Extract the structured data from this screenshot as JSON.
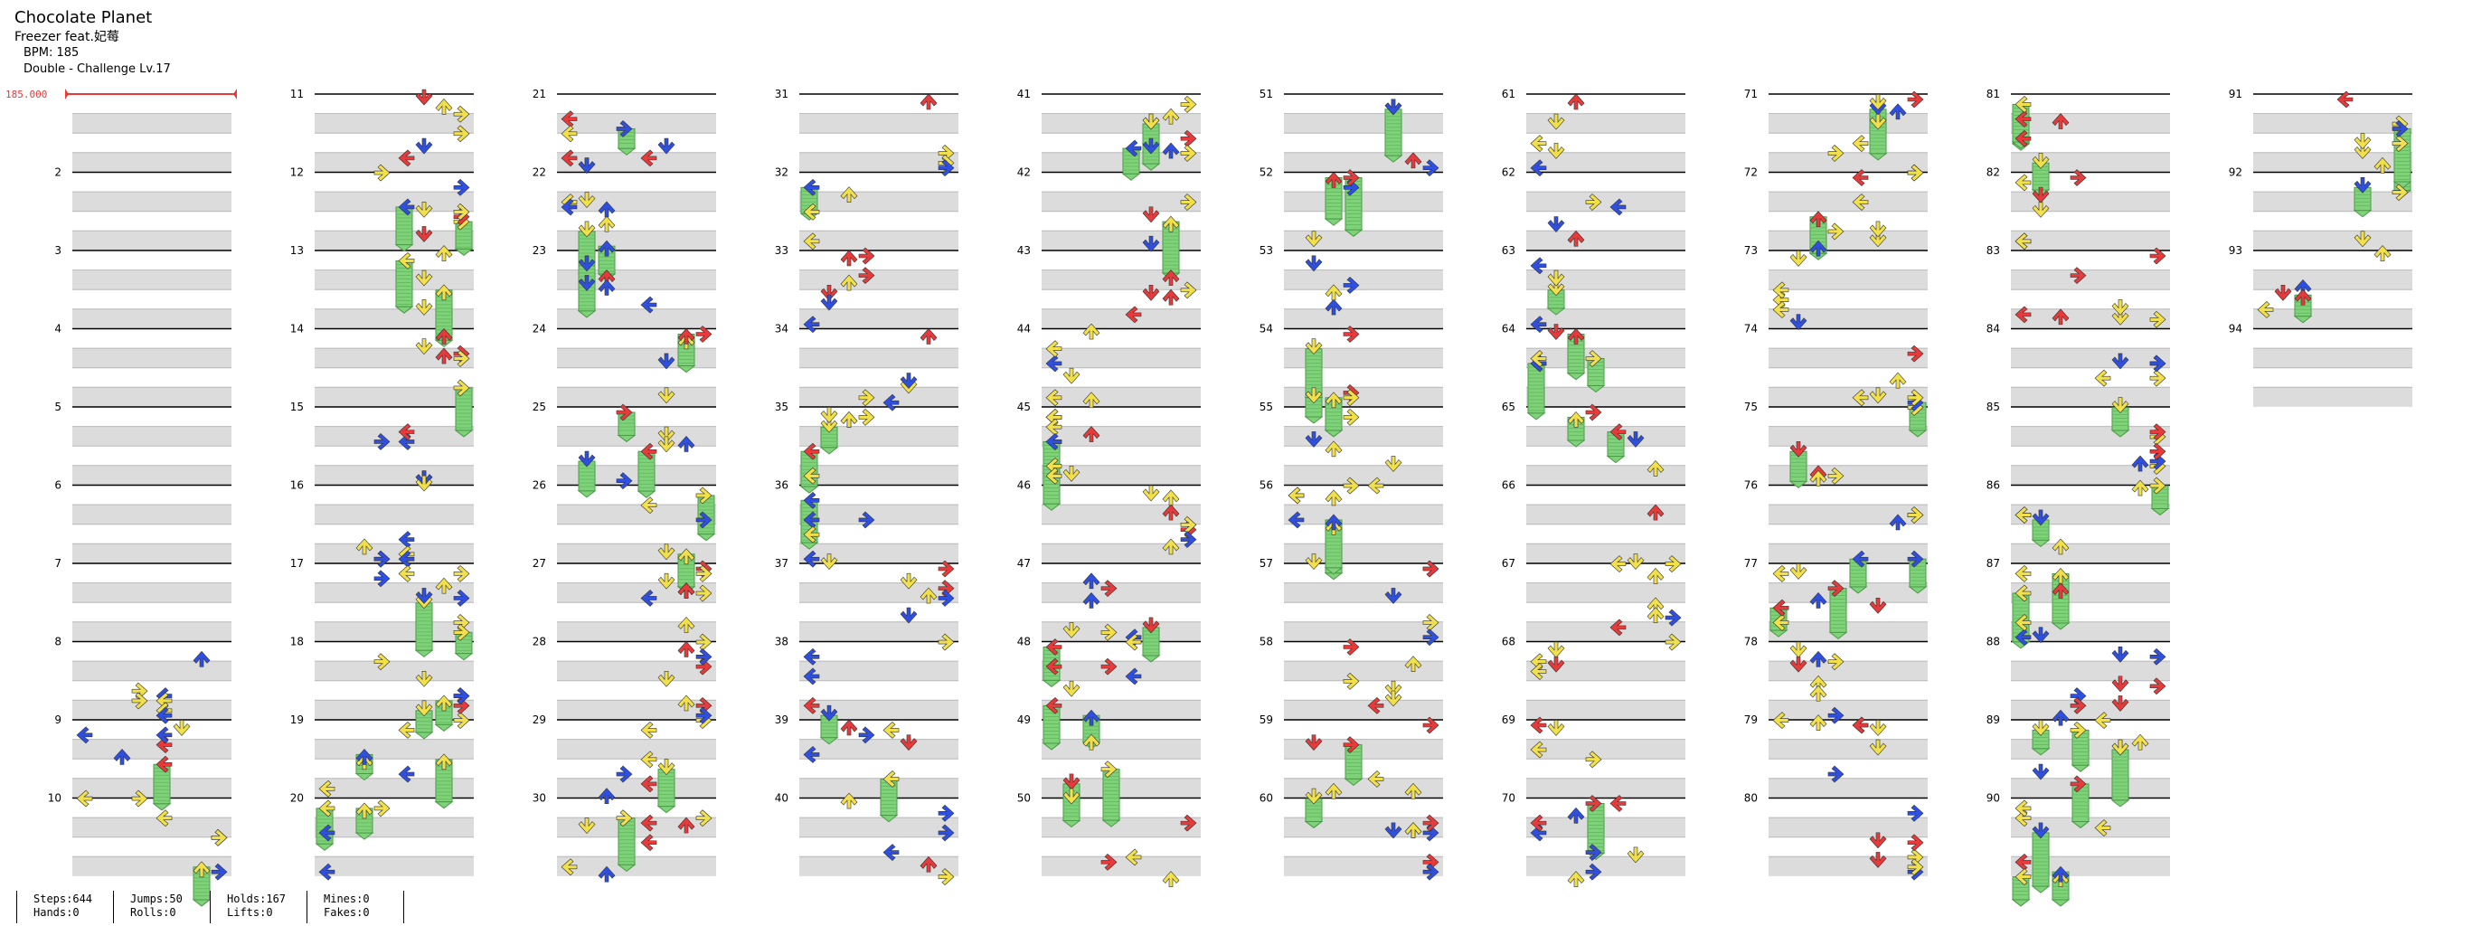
{
  "song": {
    "title": "Chocolate Planet",
    "artist": "Freezer feat.妃莓",
    "bpm_label": "BPM: 185",
    "difficulty_label": "Double - Challenge Lv.17"
  },
  "bpm_marker": "185.000",
  "measure_labels": [
    "2",
    "3",
    "4",
    "5",
    "6",
    "7",
    "8",
    "9",
    "10",
    "11",
    "12",
    "13",
    "14",
    "15",
    "16",
    "17",
    "18",
    "19",
    "20",
    "21",
    "22",
    "23",
    "24",
    "25",
    "26",
    "27",
    "28",
    "29",
    "30",
    "31",
    "32",
    "33",
    "34",
    "35",
    "36",
    "37",
    "38",
    "39",
    "40",
    "41",
    "42",
    "43",
    "44",
    "45",
    "46",
    "47",
    "48",
    "49",
    "50",
    "51",
    "52",
    "53",
    "54",
    "55",
    "56",
    "57",
    "58",
    "59",
    "60",
    "61",
    "62",
    "63",
    "64",
    "65",
    "66",
    "67",
    "68",
    "69",
    "70",
    "71",
    "72",
    "73",
    "74",
    "75",
    "76",
    "77",
    "78",
    "79",
    "80",
    "81",
    "82",
    "83",
    "84",
    "85",
    "86",
    "87",
    "88",
    "89",
    "90",
    "91",
    "92",
    "93",
    "94"
  ],
  "colors": {
    "red": "#e83a3a",
    "blue": "#2e4fe0",
    "yellow": "#f2e04a",
    "green": "#7fd27a",
    "purple": "#b040e8",
    "band": "#dcdcdc",
    "line": "#000000"
  },
  "stats": {
    "steps": "Steps:644",
    "hands": "Hands:0",
    "jumps": "Jumps:50",
    "rolls": "Rolls:0",
    "holds": "Holds:167",
    "lifts": "Lifts:0",
    "mines": "Mines:0",
    "fakes": "Fakes:0"
  }
}
